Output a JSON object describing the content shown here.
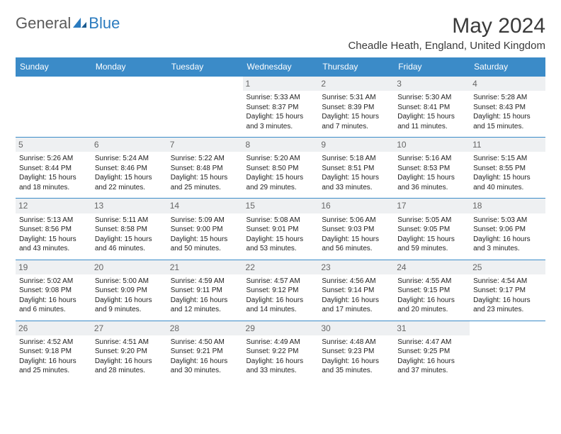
{
  "logo": {
    "part1": "General",
    "part2": "Blue"
  },
  "title": "May 2024",
  "location": "Cheadle Heath, England, United Kingdom",
  "colors": {
    "header_bg": "#3b8bc8",
    "header_text": "#ffffff",
    "daynum_bg": "#eef0f2",
    "border": "#3b8bc8",
    "page_bg": "#ffffff",
    "text": "#222222",
    "logo_gray": "#5a5a5a",
    "logo_blue": "#2b7bbf"
  },
  "typography": {
    "title_fontsize": 30,
    "location_fontsize": 15,
    "dayhead_fontsize": 12,
    "daynum_fontsize": 12,
    "cell_fontsize": 10
  },
  "day_names": [
    "Sunday",
    "Monday",
    "Tuesday",
    "Wednesday",
    "Thursday",
    "Friday",
    "Saturday"
  ],
  "weeks": [
    [
      {
        "n": "",
        "sr": "",
        "ss": "",
        "dl": ""
      },
      {
        "n": "",
        "sr": "",
        "ss": "",
        "dl": ""
      },
      {
        "n": "",
        "sr": "",
        "ss": "",
        "dl": ""
      },
      {
        "n": "1",
        "sr": "Sunrise: 5:33 AM",
        "ss": "Sunset: 8:37 PM",
        "dl": "Daylight: 15 hours and 3 minutes."
      },
      {
        "n": "2",
        "sr": "Sunrise: 5:31 AM",
        "ss": "Sunset: 8:39 PM",
        "dl": "Daylight: 15 hours and 7 minutes."
      },
      {
        "n": "3",
        "sr": "Sunrise: 5:30 AM",
        "ss": "Sunset: 8:41 PM",
        "dl": "Daylight: 15 hours and 11 minutes."
      },
      {
        "n": "4",
        "sr": "Sunrise: 5:28 AM",
        "ss": "Sunset: 8:43 PM",
        "dl": "Daylight: 15 hours and 15 minutes."
      }
    ],
    [
      {
        "n": "5",
        "sr": "Sunrise: 5:26 AM",
        "ss": "Sunset: 8:44 PM",
        "dl": "Daylight: 15 hours and 18 minutes."
      },
      {
        "n": "6",
        "sr": "Sunrise: 5:24 AM",
        "ss": "Sunset: 8:46 PM",
        "dl": "Daylight: 15 hours and 22 minutes."
      },
      {
        "n": "7",
        "sr": "Sunrise: 5:22 AM",
        "ss": "Sunset: 8:48 PM",
        "dl": "Daylight: 15 hours and 25 minutes."
      },
      {
        "n": "8",
        "sr": "Sunrise: 5:20 AM",
        "ss": "Sunset: 8:50 PM",
        "dl": "Daylight: 15 hours and 29 minutes."
      },
      {
        "n": "9",
        "sr": "Sunrise: 5:18 AM",
        "ss": "Sunset: 8:51 PM",
        "dl": "Daylight: 15 hours and 33 minutes."
      },
      {
        "n": "10",
        "sr": "Sunrise: 5:16 AM",
        "ss": "Sunset: 8:53 PM",
        "dl": "Daylight: 15 hours and 36 minutes."
      },
      {
        "n": "11",
        "sr": "Sunrise: 5:15 AM",
        "ss": "Sunset: 8:55 PM",
        "dl": "Daylight: 15 hours and 40 minutes."
      }
    ],
    [
      {
        "n": "12",
        "sr": "Sunrise: 5:13 AM",
        "ss": "Sunset: 8:56 PM",
        "dl": "Daylight: 15 hours and 43 minutes."
      },
      {
        "n": "13",
        "sr": "Sunrise: 5:11 AM",
        "ss": "Sunset: 8:58 PM",
        "dl": "Daylight: 15 hours and 46 minutes."
      },
      {
        "n": "14",
        "sr": "Sunrise: 5:09 AM",
        "ss": "Sunset: 9:00 PM",
        "dl": "Daylight: 15 hours and 50 minutes."
      },
      {
        "n": "15",
        "sr": "Sunrise: 5:08 AM",
        "ss": "Sunset: 9:01 PM",
        "dl": "Daylight: 15 hours and 53 minutes."
      },
      {
        "n": "16",
        "sr": "Sunrise: 5:06 AM",
        "ss": "Sunset: 9:03 PM",
        "dl": "Daylight: 15 hours and 56 minutes."
      },
      {
        "n": "17",
        "sr": "Sunrise: 5:05 AM",
        "ss": "Sunset: 9:05 PM",
        "dl": "Daylight: 15 hours and 59 minutes."
      },
      {
        "n": "18",
        "sr": "Sunrise: 5:03 AM",
        "ss": "Sunset: 9:06 PM",
        "dl": "Daylight: 16 hours and 3 minutes."
      }
    ],
    [
      {
        "n": "19",
        "sr": "Sunrise: 5:02 AM",
        "ss": "Sunset: 9:08 PM",
        "dl": "Daylight: 16 hours and 6 minutes."
      },
      {
        "n": "20",
        "sr": "Sunrise: 5:00 AM",
        "ss": "Sunset: 9:09 PM",
        "dl": "Daylight: 16 hours and 9 minutes."
      },
      {
        "n": "21",
        "sr": "Sunrise: 4:59 AM",
        "ss": "Sunset: 9:11 PM",
        "dl": "Daylight: 16 hours and 12 minutes."
      },
      {
        "n": "22",
        "sr": "Sunrise: 4:57 AM",
        "ss": "Sunset: 9:12 PM",
        "dl": "Daylight: 16 hours and 14 minutes."
      },
      {
        "n": "23",
        "sr": "Sunrise: 4:56 AM",
        "ss": "Sunset: 9:14 PM",
        "dl": "Daylight: 16 hours and 17 minutes."
      },
      {
        "n": "24",
        "sr": "Sunrise: 4:55 AM",
        "ss": "Sunset: 9:15 PM",
        "dl": "Daylight: 16 hours and 20 minutes."
      },
      {
        "n": "25",
        "sr": "Sunrise: 4:54 AM",
        "ss": "Sunset: 9:17 PM",
        "dl": "Daylight: 16 hours and 23 minutes."
      }
    ],
    [
      {
        "n": "26",
        "sr": "Sunrise: 4:52 AM",
        "ss": "Sunset: 9:18 PM",
        "dl": "Daylight: 16 hours and 25 minutes."
      },
      {
        "n": "27",
        "sr": "Sunrise: 4:51 AM",
        "ss": "Sunset: 9:20 PM",
        "dl": "Daylight: 16 hours and 28 minutes."
      },
      {
        "n": "28",
        "sr": "Sunrise: 4:50 AM",
        "ss": "Sunset: 9:21 PM",
        "dl": "Daylight: 16 hours and 30 minutes."
      },
      {
        "n": "29",
        "sr": "Sunrise: 4:49 AM",
        "ss": "Sunset: 9:22 PM",
        "dl": "Daylight: 16 hours and 33 minutes."
      },
      {
        "n": "30",
        "sr": "Sunrise: 4:48 AM",
        "ss": "Sunset: 9:23 PM",
        "dl": "Daylight: 16 hours and 35 minutes."
      },
      {
        "n": "31",
        "sr": "Sunrise: 4:47 AM",
        "ss": "Sunset: 9:25 PM",
        "dl": "Daylight: 16 hours and 37 minutes."
      },
      {
        "n": "",
        "sr": "",
        "ss": "",
        "dl": ""
      }
    ]
  ]
}
